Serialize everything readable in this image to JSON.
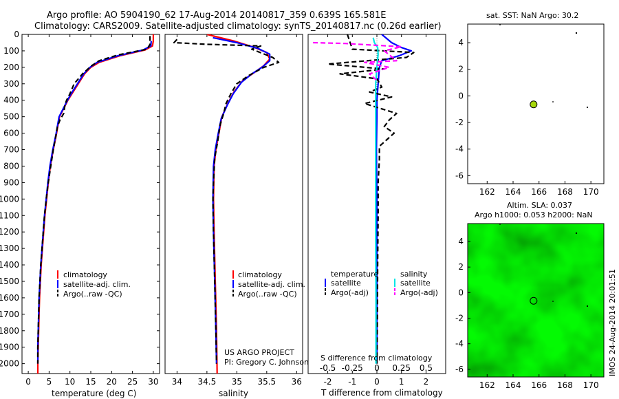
{
  "header": {
    "line1": "Argo profile: AO 5904190_62 17-Aug-2014 20140817_359 0.639S 165.581E",
    "line2": "Climatology: CARS2009. Satellite-adjusted climatology: synTS_20140817.nc (0.26d earlier)"
  },
  "side_stamp": "IMOS 24-Aug-2014 20:01:51",
  "colors": {
    "climatology": "#ff0000",
    "satellite": "#0000ff",
    "argo": "#000000",
    "salinity_satellite": "#00e5e5",
    "salinity_argo": "#ff00ff",
    "marker": "#a6d80a",
    "map_green": "#22d21f"
  },
  "chart_data": [
    {
      "id": "temperature",
      "type": "line",
      "xlabel": "temperature (deg C)",
      "ylabel": "",
      "xlim": [
        -1.5,
        31.5
      ],
      "ylim": [
        2060,
        0
      ],
      "xticks": [
        0,
        5,
        10,
        15,
        20,
        25,
        30
      ],
      "yticks": [
        0,
        100,
        200,
        300,
        400,
        500,
        600,
        700,
        800,
        900,
        1000,
        1100,
        1200,
        1300,
        1400,
        1500,
        1600,
        1700,
        1800,
        1900,
        2000
      ],
      "legend": [
        "climatology",
        "satellite-adj. clim.",
        "Argo(..raw -QC)"
      ],
      "series": [
        {
          "name": "climatology",
          "color": "#ff0000",
          "dash": "",
          "points": [
            [
              30.0,
              0
            ],
            [
              30.0,
              40
            ],
            [
              29.8,
              70
            ],
            [
              28.0,
              95
            ],
            [
              22.0,
              130
            ],
            [
              17.0,
              170
            ],
            [
              15.0,
              200
            ],
            [
              13.5,
              240
            ],
            [
              12.0,
              300
            ],
            [
              10.5,
              360
            ],
            [
              9.5,
              400
            ],
            [
              8.5,
              450
            ],
            [
              7.5,
              500
            ],
            [
              6.8,
              600
            ],
            [
              6.0,
              700
            ],
            [
              5.3,
              800
            ],
            [
              4.8,
              900
            ],
            [
              4.4,
              1000
            ],
            [
              4.0,
              1100
            ],
            [
              3.7,
              1200
            ],
            [
              3.4,
              1300
            ],
            [
              3.1,
              1400
            ],
            [
              2.9,
              1500
            ],
            [
              2.7,
              1600
            ],
            [
              2.6,
              1700
            ],
            [
              2.5,
              1800
            ],
            [
              2.4,
              1900
            ],
            [
              2.3,
              2000
            ],
            [
              2.3,
              2060
            ]
          ]
        },
        {
          "name": "satellite-adj. clim.",
          "color": "#0000ff",
          "dash": "",
          "points": [
            [
              29.5,
              40
            ],
            [
              29.4,
              70
            ],
            [
              27.5,
              95
            ],
            [
              21.5,
              130
            ],
            [
              16.5,
              170
            ],
            [
              14.8,
              200
            ],
            [
              13.3,
              240
            ],
            [
              11.8,
              300
            ],
            [
              10.3,
              360
            ],
            [
              9.4,
              400
            ],
            [
              8.4,
              450
            ],
            [
              7.4,
              500
            ],
            [
              6.7,
              600
            ],
            [
              5.9,
              700
            ],
            [
              5.2,
              800
            ],
            [
              4.7,
              900
            ],
            [
              4.3,
              1000
            ],
            [
              3.9,
              1100
            ],
            [
              3.6,
              1200
            ],
            [
              3.3,
              1300
            ],
            [
              3.0,
              1400
            ],
            [
              2.8,
              1500
            ],
            [
              2.6,
              1600
            ],
            [
              2.5,
              1700
            ],
            [
              2.4,
              1800
            ],
            [
              2.3,
              1900
            ],
            [
              2.3,
              2000
            ]
          ]
        },
        {
          "name": "Argo(..raw -QC)",
          "color": "#000000",
          "dash": "7,4",
          "points": [
            [
              29.2,
              10
            ],
            [
              29.2,
              60
            ],
            [
              28.5,
              90
            ],
            [
              21.5,
              125
            ],
            [
              17.0,
              160
            ],
            [
              15.2,
              190
            ],
            [
              13.0,
              240
            ],
            [
              11.0,
              300
            ],
            [
              10.0,
              360
            ],
            [
              9.2,
              400
            ],
            [
              8.8,
              430
            ],
            [
              8.5,
              480
            ],
            [
              7.6,
              520
            ],
            [
              7.0,
              560
            ],
            [
              6.6,
              620
            ],
            [
              6.0,
              700
            ],
            [
              5.4,
              800
            ],
            [
              4.8,
              900
            ],
            [
              4.3,
              1000
            ],
            [
              3.9,
              1100
            ],
            [
              3.6,
              1200
            ],
            [
              3.3,
              1300
            ],
            [
              3.0,
              1400
            ],
            [
              2.8,
              1500
            ],
            [
              2.6,
              1600
            ],
            [
              2.5,
              1700
            ],
            [
              2.4,
              1800
            ],
            [
              2.3,
              1900
            ],
            [
              2.3,
              2000
            ]
          ]
        }
      ]
    },
    {
      "id": "salinity",
      "type": "line",
      "xlabel": "salinity",
      "ylabel": "",
      "xlim": [
        33.8,
        36.1
      ],
      "ylim": [
        2060,
        0
      ],
      "xticks": [
        34,
        34.5,
        35,
        35.5,
        36
      ],
      "yticks": [],
      "legend": [
        "climatology",
        "satellite-adj. clim.",
        "Argo(..raw -QC)"
      ],
      "series": [
        {
          "name": "climatology",
          "color": "#ff0000",
          "dash": "",
          "points": [
            [
              34.5,
              0
            ],
            [
              34.95,
              40
            ],
            [
              35.3,
              80
            ],
            [
              35.5,
              110
            ],
            [
              35.55,
              150
            ],
            [
              35.45,
              190
            ],
            [
              35.3,
              230
            ],
            [
              35.1,
              280
            ],
            [
              34.95,
              350
            ],
            [
              34.85,
              420
            ],
            [
              34.75,
              500
            ],
            [
              34.7,
              600
            ],
            [
              34.65,
              700
            ],
            [
              34.62,
              800
            ],
            [
              34.61,
              1000
            ],
            [
              34.62,
              1200
            ],
            [
              34.64,
              1500
            ],
            [
              34.66,
              1800
            ],
            [
              34.67,
              2060
            ]
          ]
        },
        {
          "name": "satellite-adj. clim.",
          "color": "#0000ff",
          "dash": "",
          "points": [
            [
              34.6,
              20
            ],
            [
              35.0,
              50
            ],
            [
              35.35,
              85
            ],
            [
              35.55,
              120
            ],
            [
              35.55,
              160
            ],
            [
              35.42,
              200
            ],
            [
              35.25,
              240
            ],
            [
              35.08,
              290
            ],
            [
              34.94,
              360
            ],
            [
              34.84,
              430
            ],
            [
              34.74,
              510
            ],
            [
              34.69,
              600
            ],
            [
              34.64,
              700
            ],
            [
              34.61,
              800
            ],
            [
              34.6,
              1000
            ],
            [
              34.61,
              1200
            ],
            [
              34.63,
              1500
            ],
            [
              34.65,
              1800
            ],
            [
              34.66,
              2000
            ]
          ]
        },
        {
          "name": "Argo(..raw -QC)",
          "color": "#000000",
          "dash": "7,4",
          "points": [
            [
              34.0,
              30
            ],
            [
              33.95,
              50
            ],
            [
              34.5,
              60
            ],
            [
              35.4,
              70
            ],
            [
              35.25,
              90
            ],
            [
              35.6,
              140
            ],
            [
              35.7,
              170
            ],
            [
              35.45,
              200
            ],
            [
              35.2,
              250
            ],
            [
              35.0,
              300
            ],
            [
              34.9,
              360
            ],
            [
              34.82,
              420
            ],
            [
              34.78,
              480
            ],
            [
              34.72,
              550
            ],
            [
              34.68,
              650
            ],
            [
              34.63,
              750
            ],
            [
              34.61,
              900
            ],
            [
              34.6,
              1000
            ],
            [
              34.61,
              1200
            ],
            [
              34.63,
              1500
            ],
            [
              34.65,
              1800
            ],
            [
              34.66,
              2000
            ]
          ]
        }
      ]
    },
    {
      "id": "difference",
      "type": "line",
      "xlabel": "T difference from climatology",
      "xlabel2": "S difference from climatology",
      "xlim": [
        -2.8,
        2.8
      ],
      "ylim": [
        2060,
        0
      ],
      "xticks": [
        -2,
        -1,
        0,
        1,
        2
      ],
      "xticks2": [
        -0.5,
        -0.25,
        0,
        0.25,
        0.5
      ],
      "legend_titles": [
        "temperature",
        "salinity"
      ],
      "legend": [
        "satellite",
        "Argo(-adj)",
        "satellite",
        "Argo(-adj)"
      ],
      "series": [
        {
          "name": "temperature satellite",
          "color": "#0000ff",
          "dash": "",
          "points": [
            [
              0.2,
              0
            ],
            [
              0.6,
              50
            ],
            [
              1.0,
              80
            ],
            [
              1.4,
              100
            ],
            [
              0.9,
              130
            ],
            [
              0.2,
              160
            ],
            [
              0.1,
              200
            ],
            [
              0.05,
              300
            ],
            [
              0.0,
              400
            ],
            [
              0.0,
              500
            ],
            [
              -0.02,
              700
            ],
            [
              0.0,
              1000
            ],
            [
              0.0,
              1500
            ],
            [
              0.0,
              2000
            ]
          ]
        },
        {
          "name": "temperature Argo(-adj)",
          "color": "#000000",
          "dash": "7,4",
          "points": [
            [
              -1.2,
              0
            ],
            [
              -1.0,
              90
            ],
            [
              1.5,
              110
            ],
            [
              1.2,
              140
            ],
            [
              -2.0,
              180
            ],
            [
              0.3,
              210
            ],
            [
              -1.5,
              240
            ],
            [
              0.0,
              270
            ],
            [
              0.2,
              320
            ],
            [
              -0.3,
              350
            ],
            [
              0.6,
              380
            ],
            [
              -0.5,
              420
            ],
            [
              0.8,
              480
            ],
            [
              0.5,
              520
            ],
            [
              0.3,
              560
            ],
            [
              0.7,
              600
            ],
            [
              0.1,
              680
            ],
            [
              0.1,
              760
            ],
            [
              0.05,
              900
            ],
            [
              0.05,
              1100
            ],
            [
              0.03,
              1400
            ],
            [
              0.02,
              1700
            ],
            [
              0.0,
              2000
            ]
          ]
        },
        {
          "name": "salinity satellite",
          "color": "#00e5e5",
          "dash": "",
          "points": [
            [
              -0.15,
              20
            ],
            [
              -0.1,
              50
            ],
            [
              0.03,
              80
            ],
            [
              0.05,
              120
            ],
            [
              0.0,
              200
            ],
            [
              -0.05,
              300
            ],
            [
              -0.05,
              500
            ],
            [
              -0.05,
              800
            ],
            [
              -0.05,
              1200
            ],
            [
              -0.04,
              1600
            ],
            [
              -0.04,
              2000
            ]
          ]
        },
        {
          "name": "salinity Argo(-adj)",
          "color": "#ff00ff",
          "dash": "7,4",
          "points": [
            [
              -2.6,
              50
            ],
            [
              -1.3,
              55
            ],
            [
              1.0,
              75
            ],
            [
              0.3,
              100
            ],
            [
              0.8,
              160
            ],
            [
              -0.5,
              170
            ],
            [
              0.5,
              200
            ],
            [
              -0.3,
              240
            ],
            [
              0.0,
              280
            ]
          ]
        }
      ]
    },
    {
      "id": "sst_map",
      "type": "scatter",
      "title": "sat. SST: NaN Argo: 30.2",
      "xlim": [
        160.5,
        171.0
      ],
      "ylim": [
        -6.6,
        5.4
      ],
      "xticks": [
        162,
        164,
        166,
        168,
        170
      ],
      "yticks": [
        4,
        2,
        0,
        -2,
        -4,
        -6
      ],
      "points": [
        [
          165.581,
          -0.639
        ]
      ]
    },
    {
      "id": "sla_map",
      "type": "heatmap",
      "title": "Altim. SLA: 0.037",
      "subtitle": "Argo h1000: 0.053 h2000: NaN",
      "xlim": [
        160.5,
        171.0
      ],
      "ylim": [
        -6.6,
        5.4
      ],
      "xticks": [
        162,
        164,
        166,
        168,
        170
      ],
      "yticks": [
        4,
        2,
        0,
        -2,
        -4,
        -6
      ],
      "points": [
        [
          165.581,
          -0.639
        ]
      ]
    }
  ],
  "annotations": {
    "project": "US ARGO PROJECT",
    "pi": "PI: Gregory C. Johnson"
  }
}
